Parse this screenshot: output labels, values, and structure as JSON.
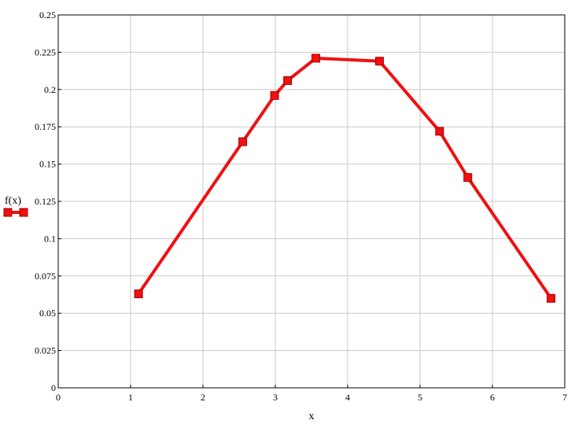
{
  "chart_data": {
    "type": "line",
    "xlabel": "x",
    "ylabel": "f(x)",
    "xlim": [
      0,
      7
    ],
    "ylim": [
      0,
      0.25
    ],
    "x_ticks": [
      "0",
      "1",
      "2",
      "3",
      "4",
      "5",
      "6",
      "7"
    ],
    "y_ticks": [
      "0",
      "0.025",
      "0.05",
      "0.075",
      "0.1",
      "0.125",
      "0.15",
      "0.175",
      "0.2",
      "0.225",
      "0.25"
    ],
    "grid": true,
    "legend": "left",
    "series": [
      {
        "name": "f(x)",
        "color": "#ee1111",
        "marker": "square",
        "x": [
          1.11,
          2.55,
          2.99,
          3.17,
          3.56,
          4.44,
          5.27,
          5.66,
          6.81
        ],
        "y": [
          0.063,
          0.165,
          0.196,
          0.206,
          0.221,
          0.219,
          0.172,
          0.141,
          0.06
        ]
      }
    ]
  }
}
